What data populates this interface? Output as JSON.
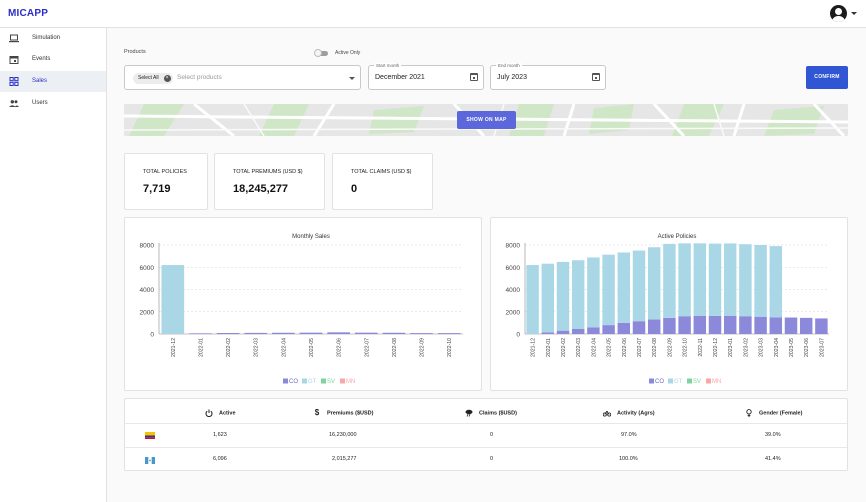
{
  "app": {
    "title": "MICAPP"
  },
  "sidebar": {
    "items": [
      {
        "label": "Simulation",
        "icon": "laptop-icon"
      },
      {
        "label": "Events",
        "icon": "calendar-icon"
      },
      {
        "label": "Sales",
        "icon": "dashboard-icon",
        "active": true
      },
      {
        "label": "Users",
        "icon": "people-icon"
      }
    ]
  },
  "filters": {
    "products_label": "Products",
    "active_only_label": "Active Only",
    "active_only": false,
    "select_all_chip": "Select All",
    "products_placeholder": "Select products",
    "start_month_label": "Start month",
    "start_month_value": "December 2021",
    "end_month_label": "End month",
    "end_month_value": "July 2023",
    "confirm_label": "CONFIRM"
  },
  "map": {
    "show_on_map_label": "SHOW ON MAP"
  },
  "stats": [
    {
      "title": "TOTAL POLICIES",
      "value": "7,719"
    },
    {
      "title": "TOTAL PREMIUMS (USD $)",
      "value": "18,245,277"
    },
    {
      "title": "TOTAL CLAIMS (USD $)",
      "value": "0"
    }
  ],
  "chart_data": [
    {
      "type": "bar",
      "title": "Monthly Sales",
      "categories": [
        "2021-12",
        "2022-01",
        "2022-02",
        "2022-03",
        "2022-04",
        "2022-05",
        "2022-06",
        "2022-07",
        "2022-08",
        "2022-09",
        "2022-10"
      ],
      "series": [
        {
          "name": "CO",
          "color": "#8c88da",
          "values": [
            0,
            60,
            90,
            100,
            110,
            120,
            150,
            120,
            110,
            80,
            80
          ]
        },
        {
          "name": "GT",
          "color": "#a9d7e6",
          "values": [
            6200,
            0,
            0,
            0,
            0,
            0,
            0,
            0,
            0,
            0,
            0
          ]
        }
      ],
      "legend": [
        "CO",
        "GT",
        "SV",
        "MN"
      ],
      "legend_colors": [
        "#8c88da",
        "#a9d7e6",
        "#7fd39c",
        "#f6a8a8"
      ],
      "yticks": [
        0,
        2000,
        4000,
        6000,
        8000
      ],
      "ylim": [
        0,
        8000
      ],
      "stacked": true,
      "grid": true,
      "legend_position": "bottom"
    },
    {
      "type": "bar",
      "title": "Active Policies",
      "categories": [
        "2021-12",
        "2022-01",
        "2022-02",
        "2022-03",
        "2022-04",
        "2022-05",
        "2022-06",
        "2022-07",
        "2022-08",
        "2022-09",
        "2022-10",
        "2022-11",
        "2022-12",
        "2023-01",
        "2023-02",
        "2023-03",
        "2023-04",
        "2023-05",
        "2023-06",
        "2023-07"
      ],
      "series": [
        {
          "name": "CO",
          "color": "#8c88da",
          "values": [
            0,
            150,
            300,
            450,
            600,
            800,
            1000,
            1150,
            1300,
            1450,
            1600,
            1620,
            1623,
            1620,
            1600,
            1550,
            1500,
            1480,
            1450,
            1400
          ]
        },
        {
          "name": "GT",
          "color": "#a9d7e6",
          "values": [
            6200,
            6170,
            6180,
            6180,
            6280,
            6330,
            6330,
            6350,
            6500,
            6650,
            6550,
            6530,
            6500,
            6520,
            6470,
            6450,
            6400,
            0,
            0,
            0
          ]
        }
      ],
      "legend": [
        "CO",
        "GT",
        "SV",
        "MN"
      ],
      "legend_colors": [
        "#8c88da",
        "#a9d7e6",
        "#7fd39c",
        "#f6a8a8"
      ],
      "yticks": [
        0,
        2000,
        4000,
        6000,
        8000
      ],
      "ylim": [
        0,
        8000
      ],
      "stacked": true,
      "grid": true,
      "legend_position": "bottom"
    }
  ],
  "table": {
    "headers": [
      {
        "label": "Active",
        "icon": "power-icon"
      },
      {
        "label": "Premiums ($USD)",
        "icon": "dollar-icon"
      },
      {
        "label": "Claims ($USD)",
        "icon": "storm-icon"
      },
      {
        "label": "Activity (Agrs)",
        "icon": "bike-icon"
      },
      {
        "label": "Gender (Female)",
        "icon": "female-icon"
      }
    ],
    "rows": [
      {
        "flag": "colombia-flag-icon",
        "active": "1,623",
        "premiums": "16,230,000",
        "claims": "0",
        "activity": "97.0%",
        "gender": "39.0%"
      },
      {
        "flag": "guatemala-flag-icon",
        "active": "6,096",
        "premiums": "2,015,277",
        "claims": "0",
        "activity": "100.0%",
        "gender": "41.4%"
      }
    ]
  }
}
